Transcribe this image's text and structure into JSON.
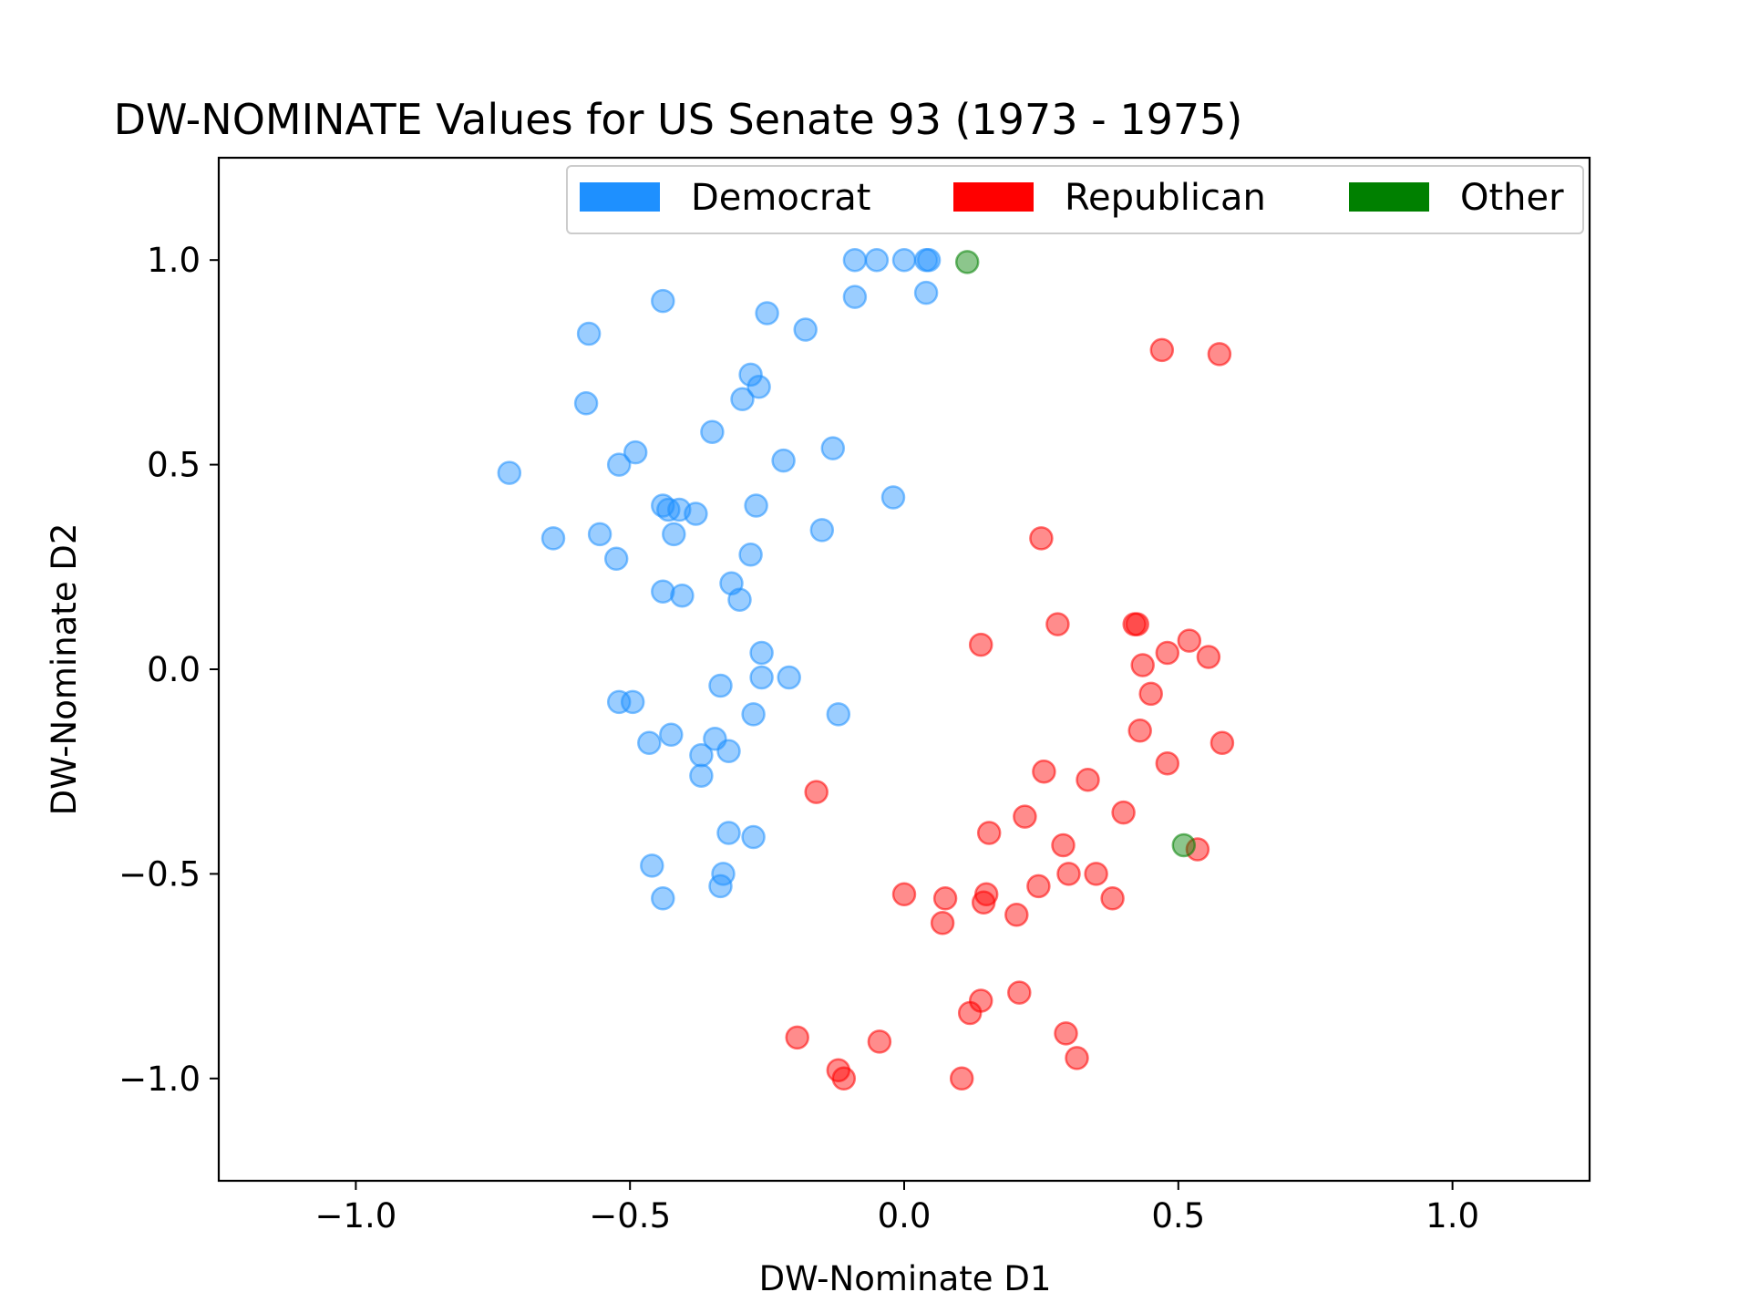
{
  "chart_data": {
    "type": "scatter",
    "title": "DW-NOMINATE Values for US Senate 93 (1973 - 1975)",
    "xlabel": "DW-Nominate D1",
    "ylabel": "DW-Nominate D2",
    "xlim": [
      -1.25,
      1.25
    ],
    "ylim": [
      -1.25,
      1.25
    ],
    "xticks": [
      -1.0,
      -0.5,
      0.0,
      0.5,
      1.0
    ],
    "yticks": [
      -1.0,
      -0.5,
      0.0,
      0.5,
      1.0
    ],
    "xtick_labels": [
      "−1.0",
      "−0.5",
      "0.0",
      "0.5",
      "1.0"
    ],
    "ytick_labels": [
      "−1.0",
      "−0.5",
      "0.0",
      "0.5",
      "1.0"
    ],
    "grid": false,
    "legend_position": "top-right",
    "point_alpha": 0.45,
    "series": [
      {
        "name": "Democrat",
        "color": "#1E90FF",
        "points": [
          [
            -0.09,
            1.0
          ],
          [
            -0.05,
            1.0
          ],
          [
            0.0,
            1.0
          ],
          [
            0.04,
            1.0
          ],
          [
            0.045,
            1.0
          ],
          [
            -0.44,
            0.9
          ],
          [
            -0.09,
            0.91
          ],
          [
            0.04,
            0.92
          ],
          [
            -0.25,
            0.87
          ],
          [
            -0.18,
            0.83
          ],
          [
            -0.575,
            0.82
          ],
          [
            -0.28,
            0.72
          ],
          [
            -0.265,
            0.69
          ],
          [
            -0.295,
            0.66
          ],
          [
            -0.58,
            0.65
          ],
          [
            -0.35,
            0.58
          ],
          [
            -0.49,
            0.53
          ],
          [
            -0.52,
            0.5
          ],
          [
            -0.22,
            0.51
          ],
          [
            -0.13,
            0.54
          ],
          [
            -0.72,
            0.48
          ],
          [
            -0.44,
            0.4
          ],
          [
            -0.43,
            0.39
          ],
          [
            -0.41,
            0.39
          ],
          [
            -0.38,
            0.38
          ],
          [
            -0.27,
            0.4
          ],
          [
            -0.02,
            0.42
          ],
          [
            -0.15,
            0.34
          ],
          [
            -0.64,
            0.32
          ],
          [
            -0.555,
            0.33
          ],
          [
            -0.42,
            0.33
          ],
          [
            -0.525,
            0.27
          ],
          [
            -0.28,
            0.28
          ],
          [
            -0.44,
            0.19
          ],
          [
            -0.405,
            0.18
          ],
          [
            -0.315,
            0.21
          ],
          [
            -0.3,
            0.17
          ],
          [
            -0.26,
            0.04
          ],
          [
            -0.26,
            -0.02
          ],
          [
            -0.21,
            -0.02
          ],
          [
            -0.335,
            -0.04
          ],
          [
            -0.52,
            -0.08
          ],
          [
            -0.495,
            -0.08
          ],
          [
            -0.275,
            -0.11
          ],
          [
            -0.12,
            -0.11
          ],
          [
            -0.465,
            -0.18
          ],
          [
            -0.425,
            -0.16
          ],
          [
            -0.345,
            -0.17
          ],
          [
            -0.32,
            -0.2
          ],
          [
            -0.37,
            -0.21
          ],
          [
            -0.37,
            -0.26
          ],
          [
            -0.32,
            -0.4
          ],
          [
            -0.275,
            -0.41
          ],
          [
            -0.46,
            -0.48
          ],
          [
            -0.33,
            -0.5
          ],
          [
            -0.44,
            -0.56
          ],
          [
            -0.335,
            -0.53
          ]
        ]
      },
      {
        "name": "Republican",
        "color": "#FF0000",
        "points": [
          [
            0.47,
            0.78
          ],
          [
            0.575,
            0.77
          ],
          [
            0.25,
            0.32
          ],
          [
            0.28,
            0.11
          ],
          [
            0.42,
            0.11
          ],
          [
            0.425,
            0.11
          ],
          [
            0.14,
            0.06
          ],
          [
            0.52,
            0.07
          ],
          [
            0.48,
            0.04
          ],
          [
            0.555,
            0.03
          ],
          [
            0.435,
            0.01
          ],
          [
            0.45,
            -0.06
          ],
          [
            0.43,
            -0.15
          ],
          [
            0.58,
            -0.18
          ],
          [
            0.48,
            -0.23
          ],
          [
            0.255,
            -0.25
          ],
          [
            0.335,
            -0.27
          ],
          [
            -0.16,
            -0.3
          ],
          [
            0.4,
            -0.35
          ],
          [
            0.22,
            -0.36
          ],
          [
            0.155,
            -0.4
          ],
          [
            0.29,
            -0.43
          ],
          [
            0.535,
            -0.44
          ],
          [
            0.3,
            -0.5
          ],
          [
            0.35,
            -0.5
          ],
          [
            0.245,
            -0.53
          ],
          [
            0.38,
            -0.56
          ],
          [
            0.0,
            -0.55
          ],
          [
            0.075,
            -0.56
          ],
          [
            0.15,
            -0.55
          ],
          [
            0.145,
            -0.57
          ],
          [
            0.205,
            -0.6
          ],
          [
            0.07,
            -0.62
          ],
          [
            0.21,
            -0.79
          ],
          [
            0.14,
            -0.81
          ],
          [
            0.12,
            -0.84
          ],
          [
            -0.195,
            -0.9
          ],
          [
            -0.045,
            -0.91
          ],
          [
            0.295,
            -0.89
          ],
          [
            0.315,
            -0.95
          ],
          [
            -0.12,
            -0.98
          ],
          [
            -0.11,
            -1.0
          ],
          [
            0.105,
            -1.0
          ]
        ]
      },
      {
        "name": "Other",
        "color": "#008000",
        "points": [
          [
            0.115,
            0.995
          ],
          [
            0.51,
            -0.43
          ]
        ]
      }
    ]
  }
}
